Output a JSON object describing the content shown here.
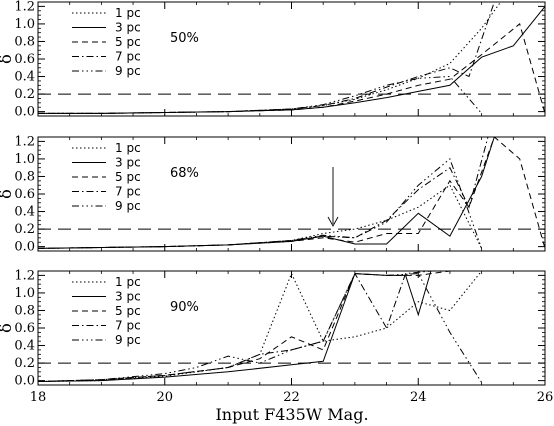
{
  "figure": {
    "xlabel": "Input F435W Mag.",
    "ylabel": "δ"
  },
  "chart_data": {
    "type": "line",
    "xlim": [
      18,
      26
    ],
    "ylim": [
      -0.05,
      1.25
    ],
    "x_ticks": [
      18,
      20,
      22,
      24,
      26
    ],
    "y_ticks": [
      0.0,
      0.2,
      0.4,
      0.6,
      0.8,
      1.0,
      1.2
    ],
    "x_tick_labels": [
      "18",
      "20",
      "22",
      "24",
      "26"
    ],
    "y_tick_labels": [
      "0.0",
      "0.2",
      "0.4",
      "0.6",
      "0.8",
      "1.0",
      "1.2"
    ],
    "threshold": 0.2,
    "legend": [
      "1 pc",
      "3 pc",
      "5 pc",
      "7 pc",
      "9 pc"
    ],
    "panels": [
      {
        "label": "50%",
        "series": [
          {
            "name": "1 pc",
            "x": [
              18,
              19,
              20,
              21,
              22,
              22.5,
              23,
              23.5,
              24,
              24.5,
              25,
              25.3
            ],
            "y": [
              -0.02,
              -0.02,
              -0.01,
              0.0,
              0.03,
              0.07,
              0.14,
              0.25,
              0.38,
              0.55,
              0.95,
              1.25
            ]
          },
          {
            "name": "3 pc",
            "x": [
              18,
              19,
              20,
              21,
              22,
              22.5,
              23,
              23.5,
              24,
              24.5,
              25,
              25.5,
              26
            ],
            "y": [
              -0.02,
              -0.02,
              -0.01,
              0.0,
              0.02,
              0.05,
              0.1,
              0.16,
              0.23,
              0.3,
              0.62,
              0.75,
              1.2
            ]
          },
          {
            "name": "5 pc",
            "x": [
              18,
              19,
              20,
              21,
              22,
              22.5,
              23,
              23.5,
              24,
              24.5,
              25,
              25.6,
              26
            ],
            "y": [
              -0.02,
              -0.02,
              -0.01,
              0.0,
              0.02,
              0.05,
              0.12,
              0.2,
              0.3,
              0.37,
              0.65,
              1.0,
              -0.02
            ]
          },
          {
            "name": "7 pc",
            "x": [
              18,
              19,
              20,
              21,
              22,
              22.5,
              23,
              23.5,
              24,
              24.5,
              24.8,
              25.2
            ],
            "y": [
              -0.02,
              -0.02,
              -0.01,
              0.0,
              0.03,
              0.07,
              0.15,
              0.28,
              0.4,
              0.5,
              0.4,
              1.25
            ]
          },
          {
            "name": "9 pc",
            "x": [
              18,
              19,
              20,
              21,
              22,
              22.5,
              23,
              23.5,
              24,
              24.5,
              25
            ],
            "y": [
              -0.02,
              -0.02,
              -0.01,
              0.0,
              0.03,
              0.08,
              0.18,
              0.3,
              0.38,
              0.4,
              -0.02
            ]
          }
        ]
      },
      {
        "label": "68%",
        "series": [
          {
            "name": "1 pc",
            "x": [
              18,
              19,
              20,
              21,
              22,
              22.5,
              23,
              23.5,
              24,
              24.5,
              25
            ],
            "y": [
              -0.02,
              -0.01,
              0.0,
              0.02,
              0.07,
              0.15,
              0.2,
              0.3,
              0.45,
              0.7,
              -0.02
            ]
          },
          {
            "name": "3 pc",
            "x": [
              18,
              19,
              20,
              21,
              22,
              22.5,
              23,
              23.5,
              24,
              24.5,
              25,
              25.2
            ],
            "y": [
              -0.02,
              -0.01,
              0.0,
              0.02,
              0.06,
              0.12,
              0.03,
              0.03,
              0.38,
              0.12,
              0.8,
              1.25
            ]
          },
          {
            "name": "5 pc",
            "x": [
              18,
              19,
              20,
              21,
              22,
              22.5,
              23,
              23.5,
              24,
              24.5,
              24.8,
              25.2,
              25.6,
              26
            ],
            "y": [
              -0.02,
              -0.01,
              0.0,
              0.02,
              0.06,
              0.1,
              0.05,
              0.15,
              0.15,
              0.75,
              0.45,
              1.25,
              1.0,
              -0.02
            ]
          },
          {
            "name": "7 pc",
            "x": [
              18,
              19,
              20,
              21,
              22,
              22.5,
              23,
              23.5,
              24,
              24.5,
              24.8,
              25.1
            ],
            "y": [
              -0.02,
              -0.01,
              0.0,
              0.02,
              0.07,
              0.12,
              0.1,
              0.3,
              0.65,
              0.9,
              0.45,
              1.25
            ]
          },
          {
            "name": "9 pc",
            "x": [
              18,
              19,
              20,
              21,
              22,
              22.5,
              23,
              23.5,
              24,
              24.5,
              25
            ],
            "y": [
              -0.02,
              -0.01,
              0.0,
              0.02,
              0.07,
              0.13,
              0.1,
              0.28,
              0.7,
              1.0,
              -0.02
            ]
          }
        ]
      },
      {
        "label": "90%",
        "series": [
          {
            "name": "1 pc",
            "x": [
              18,
              19,
              20,
              21,
              21.5,
              22,
              22.5,
              23,
              23.5,
              24,
              24.5,
              25
            ],
            "y": [
              -0.01,
              0.0,
              0.05,
              0.15,
              0.3,
              1.22,
              0.45,
              0.5,
              0.6,
              0.9,
              0.8,
              1.25
            ]
          },
          {
            "name": "3 pc",
            "x": [
              18,
              19,
              20,
              21,
              22,
              22.5,
              23,
              23.5,
              23.8,
              24,
              24.2
            ],
            "y": [
              -0.01,
              0.0,
              0.04,
              0.1,
              0.18,
              0.22,
              1.22,
              1.2,
              1.2,
              0.75,
              1.25
            ]
          },
          {
            "name": "5 pc",
            "x": [
              18,
              19,
              20,
              21,
              21.5,
              22,
              22.5,
              23,
              23.5,
              24,
              24.5
            ],
            "y": [
              -0.01,
              0.01,
              0.06,
              0.15,
              0.25,
              0.5,
              0.35,
              1.22,
              1.2,
              1.2,
              1.25
            ]
          },
          {
            "name": "7 pc",
            "x": [
              18,
              19,
              20,
              21,
              21.5,
              22,
              22.5,
              23,
              23.5,
              23.8,
              24.2
            ],
            "y": [
              -0.01,
              0.01,
              0.06,
              0.15,
              0.3,
              0.35,
              0.45,
              1.22,
              0.6,
              1.22,
              1.25
            ]
          },
          {
            "name": "9 pc",
            "x": [
              18,
              19,
              20,
              20.5,
              21,
              21.5,
              22,
              22.5,
              23,
              23.5,
              24,
              24.5,
              25
            ],
            "y": [
              -0.01,
              0.01,
              0.08,
              0.15,
              0.28,
              0.2,
              0.35,
              0.45,
              1.22,
              1.2,
              1.22,
              0.55,
              -0.02
            ]
          }
        ]
      }
    ]
  },
  "styles": {
    "line_color": "#000000",
    "dash_patterns": [
      "1.5,2.5",
      "",
      "6,4",
      "7,3,1.5,3",
      "7,3,1.5,3,1.5,3,1.5,3"
    ]
  }
}
